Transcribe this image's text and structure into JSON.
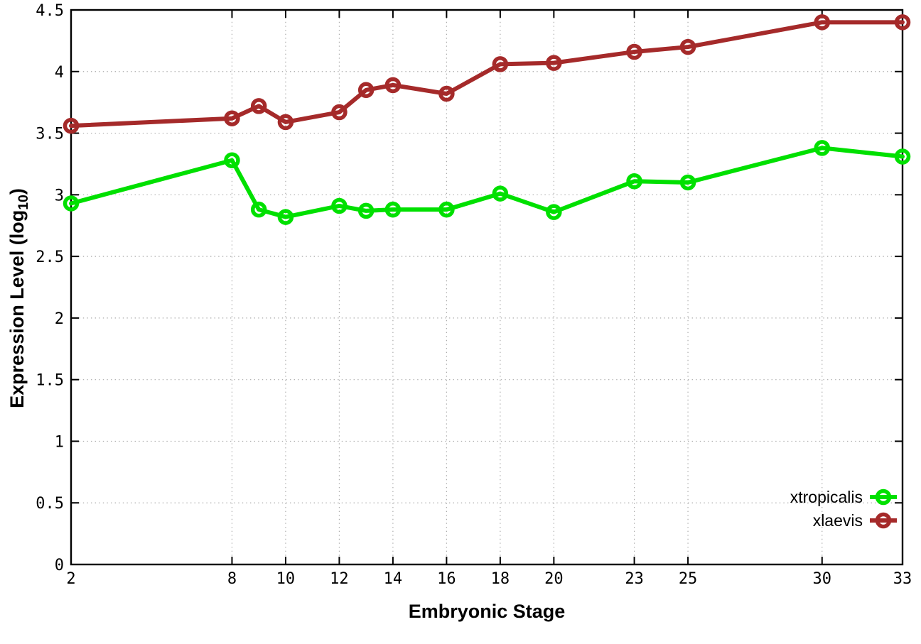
{
  "chart_data": {
    "type": "line",
    "title": "",
    "xlabel": "Embryonic Stage",
    "ylabel_main": "Expression Level (log",
    "ylabel_sub": "10",
    "ylabel_close": ")",
    "x": [
      2,
      8,
      9,
      10,
      12,
      13,
      14,
      16,
      18,
      20,
      23,
      25,
      30,
      33
    ],
    "series": [
      {
        "name": "xtropicalis",
        "color": "#00e000",
        "values": [
          2.93,
          3.28,
          2.88,
          2.82,
          2.91,
          2.87,
          2.88,
          2.88,
          3.01,
          2.86,
          3.11,
          3.1,
          3.38,
          3.31
        ]
      },
      {
        "name": "xlaevis",
        "color": "#a52a2a",
        "values": [
          3.56,
          3.62,
          3.72,
          3.59,
          3.67,
          3.85,
          3.89,
          3.82,
          4.06,
          4.07,
          4.16,
          4.2,
          4.4,
          4.4
        ]
      }
    ],
    "xlim": [
      2,
      33
    ],
    "ylim": [
      0,
      4.5
    ],
    "xticks": [
      2,
      8,
      10,
      12,
      14,
      16,
      18,
      20,
      23,
      25,
      30,
      33
    ],
    "yticks": [
      0,
      0.5,
      1,
      1.5,
      2,
      2.5,
      3,
      3.5,
      4,
      4.5
    ],
    "grid": true,
    "grid_color": "#aaaaaa",
    "border_color": "#000000",
    "background": "#ffffff",
    "marker": "open-circle",
    "legend_position": "bottom-right-inside"
  }
}
